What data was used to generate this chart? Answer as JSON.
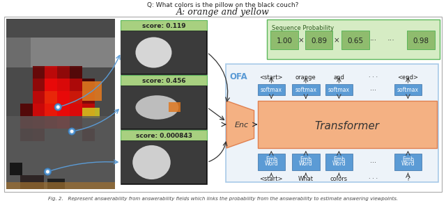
{
  "title_q": "Q: What colors is the pillow on the black couch?",
  "title_a": "A: orange and yellow",
  "caption": "Fig. 2.   Represent answerability from answerability fields which links the probability from the answerability to estimate answering viewpoints.",
  "scores": [
    "score: 0.119",
    "score: 0.456",
    "score: 0.000843"
  ],
  "seq_prob_label": "Sequence Probability",
  "seq_prob_values": [
    "1.00",
    "0.89",
    "0.65",
    "···",
    "0.98"
  ],
  "seq_prob_ops": [
    "×",
    "×",
    "",
    ""
  ],
  "ofa_label": "OFA",
  "enc_label": "Enc",
  "transformer_label": "Transformer",
  "output_tokens": [
    "<start>",
    "orange",
    "and",
    "· · ·",
    "<end>"
  ],
  "input_tokens": [
    "<start>",
    "What",
    "colors",
    "· · ·",
    "?"
  ],
  "softmax_labels": [
    "softmax",
    "softmax",
    "softmax",
    "···",
    "softmax"
  ],
  "word_emb_line1": [
    "Word",
    "Word",
    "Word",
    "···",
    "Word"
  ],
  "word_emb_line2": [
    "Emb",
    "Emb",
    "Emb",
    "",
    "Emb"
  ],
  "bg_color": "#ffffff",
  "green_border_color": "#5cb85c",
  "green_fill_color": "#8fbc6e",
  "green_light_fill": "#d6ecc4",
  "green_score_fill": "#a8d080",
  "blue_border_color": "#5b9bd5",
  "blue_fill_color": "#5b9bd5",
  "ofa_box_fill": "#dce9f5",
  "ofa_box_border": "#5b9bd5",
  "transformer_fill": "#f4b183",
  "transformer_border": "#e08050",
  "enc_fill": "#f4b183",
  "border_color": "#888888",
  "arrow_blue": "#5b9bd5",
  "arrow_black": "#333333",
  "text_dark": "#222222",
  "text_white": "#ffffff",
  "text_green_dark": "#2d5a1e",
  "outer_border": "#aaaaaa"
}
